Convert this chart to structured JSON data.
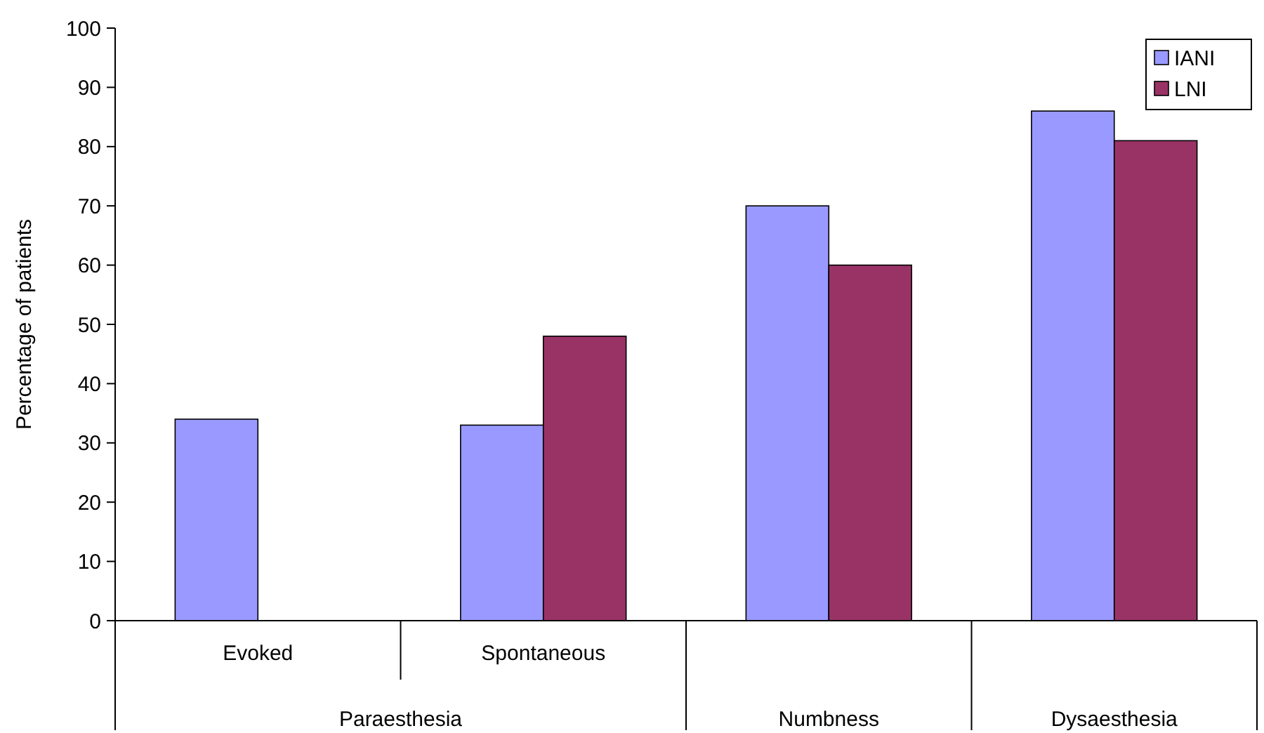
{
  "chart_data": {
    "type": "bar",
    "ylabel": "Percentage of patients",
    "categories": [
      "Evoked",
      "Spontaneous",
      "Numbness",
      "Dysaesthesia"
    ],
    "annotations": [
      "Paraesthesia"
    ],
    "series": [
      {
        "name": "IANI",
        "color": "#9999ff",
        "values": [
          34,
          33,
          70,
          86
        ]
      },
      {
        "name": "LNI",
        "color": "#993366",
        "values": [
          null,
          48,
          60,
          81
        ]
      }
    ],
    "ylim": [
      0,
      100
    ],
    "yticks": [
      0,
      10,
      20,
      30,
      40,
      50,
      60,
      70,
      80,
      90,
      100
    ],
    "grid": false,
    "legend": "top right"
  }
}
